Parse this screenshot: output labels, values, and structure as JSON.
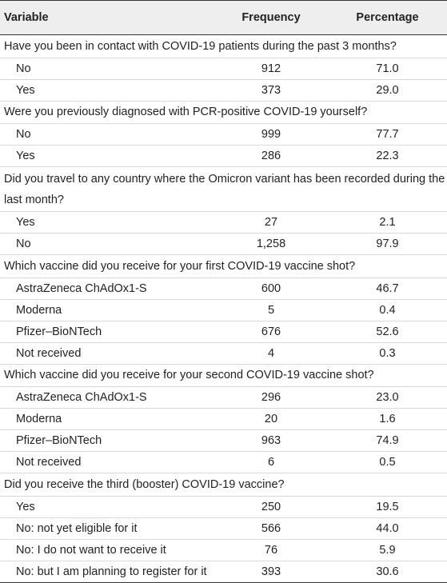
{
  "header": {
    "variable": "Variable",
    "frequency": "Frequency",
    "percentage": "Percentage"
  },
  "sections": [
    {
      "question": "Have you been in contact with COVID-19 patients during the past 3 months?",
      "rows": [
        {
          "label": "No",
          "frequency": "912",
          "percentage": "71.0"
        },
        {
          "label": "Yes",
          "frequency": "373",
          "percentage": "29.0"
        }
      ]
    },
    {
      "question": "Were you previously diagnosed with PCR-positive COVID-19 yourself?",
      "rows": [
        {
          "label": "No",
          "frequency": "999",
          "percentage": "77.7"
        },
        {
          "label": "Yes",
          "frequency": "286",
          "percentage": "22.3"
        }
      ]
    },
    {
      "question": "Did you travel to any country where the Omicron variant has been recorded during the last month?",
      "rows": [
        {
          "label": "Yes",
          "frequency": "27",
          "percentage": "2.1"
        },
        {
          "label": "No",
          "frequency": "1,258",
          "percentage": "97.9"
        }
      ]
    },
    {
      "question": "Which vaccine did you receive for your first COVID-19 vaccine shot?",
      "rows": [
        {
          "label": "AstraZeneca ChAdOx1-S",
          "frequency": "600",
          "percentage": "46.7"
        },
        {
          "label": "Moderna",
          "frequency": "5",
          "percentage": "0.4"
        },
        {
          "label": "Pfizer–BioNTech",
          "frequency": "676",
          "percentage": "52.6"
        },
        {
          "label": "Not received",
          "frequency": "4",
          "percentage": "0.3"
        }
      ]
    },
    {
      "question": "Which vaccine did you receive for your second COVID-19 vaccine shot?",
      "rows": [
        {
          "label": "AstraZeneca ChAdOx1-S",
          "frequency": "296",
          "percentage": "23.0"
        },
        {
          "label": "Moderna",
          "frequency": "20",
          "percentage": "1.6"
        },
        {
          "label": "Pfizer–BioNTech",
          "frequency": "963",
          "percentage": "74.9"
        },
        {
          "label": "Not received",
          "frequency": "6",
          "percentage": "0.5"
        }
      ]
    },
    {
      "question": "Did you receive the third (booster) COVID-19 vaccine?",
      "rows": [
        {
          "label": "Yes",
          "frequency": "250",
          "percentage": "19.5"
        },
        {
          "label": "No: not yet eligible for it",
          "frequency": "566",
          "percentage": "44.0"
        },
        {
          "label": "No: I do not want to receive it",
          "frequency": "76",
          "percentage": "5.9"
        },
        {
          "label": "No: but I am planning to register for it",
          "frequency": "393",
          "percentage": "30.6"
        }
      ]
    }
  ]
}
